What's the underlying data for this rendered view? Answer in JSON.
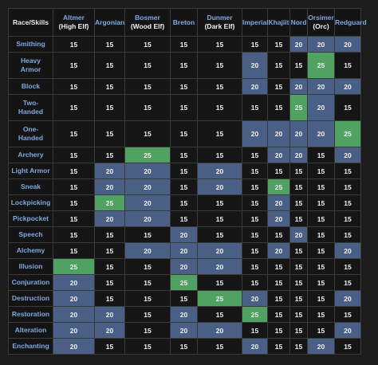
{
  "table": {
    "corner": "Race/Skills",
    "races": [
      {
        "l1": "Altmer",
        "l2": "(High Elf)"
      },
      {
        "l1": "Argonian",
        "l2": ""
      },
      {
        "l1": "Bosmer",
        "l2": "(Wood Elf)"
      },
      {
        "l1": "Breton",
        "l2": ""
      },
      {
        "l1": "Dunmer",
        "l2": "(Dark Elf)"
      },
      {
        "l1": "Imperial",
        "l2": ""
      },
      {
        "l1": "Khajiit",
        "l2": ""
      },
      {
        "l1": "Nord",
        "l2": ""
      },
      {
        "l1": "Orsimer",
        "l2": "(Orc)"
      },
      {
        "l1": "Redguard",
        "l2": ""
      }
    ],
    "rows": [
      {
        "l1": "Smithing",
        "l2": "",
        "values": [
          "15",
          "15",
          "15",
          "15",
          "15",
          "15",
          "15",
          "20",
          "20",
          "20"
        ]
      },
      {
        "l1": "Heavy",
        "l2": "Armor",
        "values": [
          "15",
          "15",
          "15",
          "15",
          "15",
          "20",
          "15",
          "15",
          "25",
          "15"
        ]
      },
      {
        "l1": "Block",
        "l2": "",
        "values": [
          "15",
          "15",
          "15",
          "15",
          "15",
          "20",
          "15",
          "20",
          "20",
          "20"
        ]
      },
      {
        "l1": "Two-",
        "l2": "Handed",
        "values": [
          "15",
          "15",
          "15",
          "15",
          "15",
          "15",
          "15",
          "25",
          "20",
          "15"
        ]
      },
      {
        "l1": "One-",
        "l2": "Handed",
        "values": [
          "15",
          "15",
          "15",
          "15",
          "15",
          "20",
          "20",
          "20",
          "20",
          "25"
        ]
      },
      {
        "l1": "Archery",
        "l2": "",
        "values": [
          "15",
          "15",
          "25",
          "15",
          "15",
          "15",
          "20",
          "20",
          "15",
          "20"
        ]
      },
      {
        "l1": "Light Armor",
        "l2": "",
        "values": [
          "15",
          "20",
          "20",
          "15",
          "20",
          "15",
          "15",
          "15",
          "15",
          "15"
        ]
      },
      {
        "l1": "Sneak",
        "l2": "",
        "values": [
          "15",
          "20",
          "20",
          "15",
          "20",
          "15",
          "25",
          "15",
          "15",
          "15"
        ]
      },
      {
        "l1": "Lockpicking",
        "l2": "",
        "values": [
          "15",
          "25",
          "20",
          "15",
          "15",
          "15",
          "20",
          "15",
          "15",
          "15"
        ]
      },
      {
        "l1": "Pickpocket",
        "l2": "",
        "values": [
          "15",
          "20",
          "20",
          "15",
          "15",
          "15",
          "20",
          "15",
          "15",
          "15"
        ]
      },
      {
        "l1": "Speech",
        "l2": "",
        "values": [
          "15",
          "15",
          "15",
          "20",
          "15",
          "15",
          "15",
          "20",
          "15",
          "15"
        ]
      },
      {
        "l1": "Alchemy",
        "l2": "",
        "values": [
          "15",
          "15",
          "20",
          "20",
          "20",
          "15",
          "20",
          "15",
          "15",
          "20"
        ]
      },
      {
        "l1": "Illusion",
        "l2": "",
        "values": [
          "25",
          "15",
          "15",
          "20",
          "20",
          "15",
          "15",
          "15",
          "15",
          "15"
        ]
      },
      {
        "l1": "Conjuration",
        "l2": "",
        "values": [
          "20",
          "15",
          "15",
          "25",
          "15",
          "15",
          "15",
          "15",
          "15",
          "15"
        ]
      },
      {
        "l1": "Destruction",
        "l2": "",
        "values": [
          "20",
          "15",
          "15",
          "15",
          "25",
          "20",
          "15",
          "15",
          "15",
          "20"
        ]
      },
      {
        "l1": "Restoration",
        "l2": "",
        "values": [
          "20",
          "20",
          "15",
          "20",
          "15",
          "25",
          "15",
          "15",
          "15",
          "15"
        ]
      },
      {
        "l1": "Alteration",
        "l2": "",
        "values": [
          "20",
          "20",
          "15",
          "20",
          "20",
          "15",
          "15",
          "15",
          "15",
          "20"
        ]
      },
      {
        "l1": "Enchanting",
        "l2": "",
        "values": [
          "20",
          "15",
          "15",
          "15",
          "15",
          "20",
          "15",
          "15",
          "20",
          "15"
        ]
      }
    ],
    "colors": {
      "base": "#151515",
      "plus5": "#4a5f86",
      "plus10": "#4fa262",
      "header_text": "#7fa9e0"
    }
  }
}
